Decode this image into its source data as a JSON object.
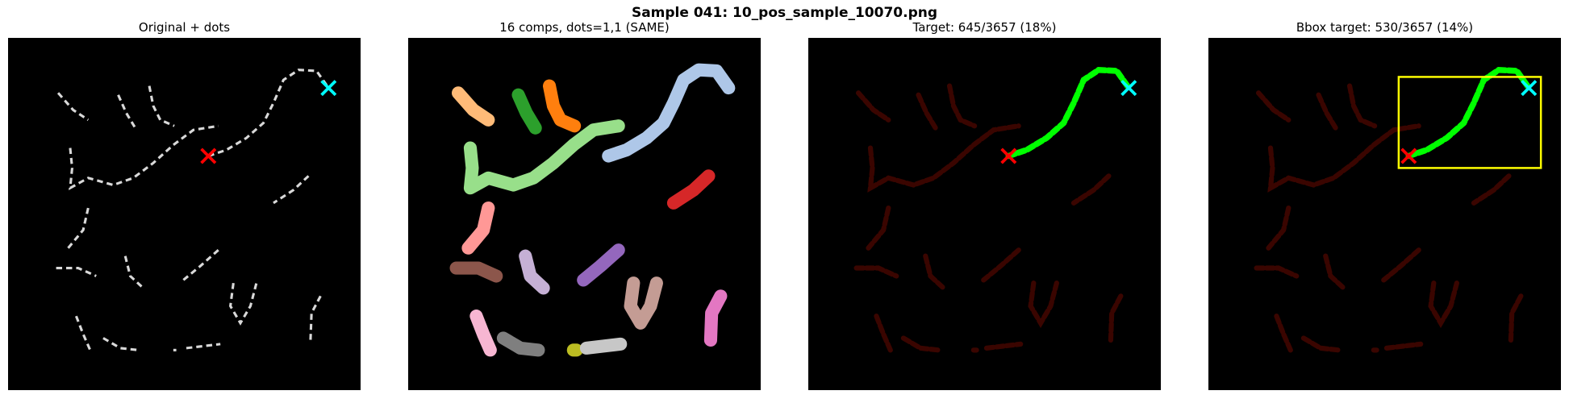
{
  "suptitle": "Sample 041: 10_pos_sample_10070.png",
  "panels": [
    {
      "title": "Original + dots"
    },
    {
      "title": "16 comps, dots=1,1 (SAME)"
    },
    {
      "title": "Target: 645/3657 (18%)"
    },
    {
      "title": "Bbox target: 530/3657 (14%)"
    }
  ],
  "colors": {
    "background": "#000000",
    "dash": "#d9d9d9",
    "start_marker": "#ff0000",
    "end_marker": "#00ffff",
    "target": "#00ff00",
    "non_target": "#3a0500",
    "bbox": "#ffff00",
    "components": [
      "#ffbb78",
      "#2ca02c",
      "#ff7f0e",
      "#98df8a",
      "#aec7e8",
      "#d62728",
      "#ff9896",
      "#8c564b",
      "#c5b0d5",
      "#9467bd",
      "#c49c94",
      "#e377c2",
      "#f7b6d2",
      "#7f7f7f",
      "#bcbd22",
      "#c7c7c7"
    ]
  }
}
